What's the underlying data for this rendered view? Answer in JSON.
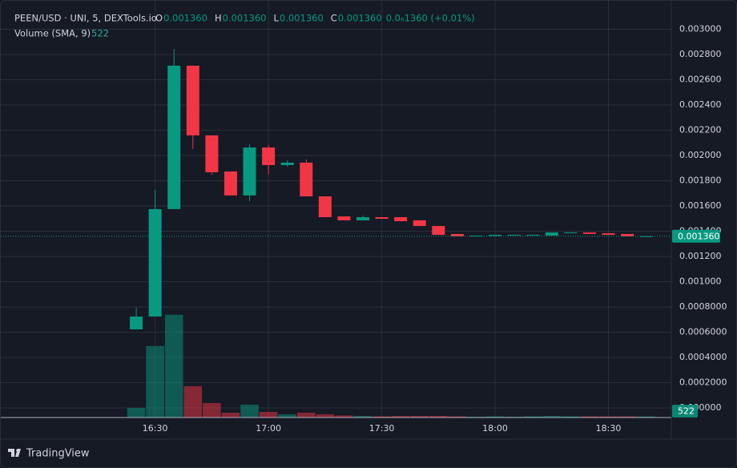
{
  "chart_data": {
    "type": "candlestick",
    "legend": {
      "symbol": "PEEN/USD · UNI, 5, DEXTools.io",
      "ohlc": [
        {
          "key": "O",
          "value": "0.001360"
        },
        {
          "key": "H",
          "value": "0.001360"
        },
        {
          "key": "L",
          "value": "0.001360"
        },
        {
          "key": "C",
          "value": "0.001360"
        }
      ],
      "change": "0.0₆1360 (+0.01%)",
      "volume_label": "Volume (SMA, 9)"
    },
    "last_price_label": "0.001360",
    "brand": "TradingView",
    "up_color": "#089981",
    "down_color": "#f23645",
    "open": [
      0.000622,
      0.000724,
      0.001575,
      0.002711,
      0.002159,
      0.001873,
      0.001683,
      0.002063,
      0.001924,
      0.001943,
      0.001676,
      0.001517,
      0.001486,
      0.001511,
      0.001511,
      0.001486,
      0.001441,
      0.001378,
      0.001359,
      0.001362,
      0.001365,
      0.001365,
      0.001365,
      0.001384,
      0.00139,
      0.001384,
      0.001378,
      0.00136
    ],
    "high": [
      0.000794,
      0.001727,
      0.002844,
      0.002711,
      0.002159,
      0.001873,
      0.002089,
      0.002083,
      0.001962,
      0.001968,
      0.001676,
      0.001517,
      0.001524,
      0.001511,
      0.001511,
      0.001486,
      0.001441,
      0.001378,
      0.001365,
      0.001371,
      0.001371,
      0.001371,
      0.00139,
      0.00139,
      0.00139,
      0.001384,
      0.001378,
      0.00136
    ],
    "low": [
      0.000622,
      0.000724,
      0.001575,
      0.002051,
      0.001848,
      0.001683,
      0.001638,
      0.001848,
      0.001911,
      0.001676,
      0.001511,
      0.001486,
      0.001486,
      0.001498,
      0.001479,
      0.001441,
      0.001371,
      0.001359,
      0.001359,
      0.001362,
      0.001365,
      0.001365,
      0.001365,
      0.001384,
      0.001378,
      0.001371,
      0.001359,
      0.00136
    ],
    "close": [
      0.000724,
      0.001575,
      0.002711,
      0.002159,
      0.001867,
      0.001683,
      0.002063,
      0.001924,
      0.001943,
      0.001676,
      0.001511,
      0.001486,
      0.001511,
      0.001498,
      0.001479,
      0.001441,
      0.001371,
      0.001359,
      0.001365,
      0.001371,
      0.001371,
      0.001371,
      0.00139,
      0.00139,
      0.001378,
      0.001371,
      0.001359,
      0.00136
    ],
    "volume": [
      4800,
      35600,
      51200,
      15600,
      7200,
      2400,
      6400,
      2800,
      1600,
      2400,
      1600,
      1000,
      800,
      600,
      800,
      800,
      800,
      600,
      400,
      600,
      400,
      600,
      800,
      600,
      600,
      600,
      600,
      522
    ],
    "volume_ylim": [
      0,
      204000
    ],
    "xlim": [
      -6.79,
      28.33
    ],
    "xticks": [
      {
        "value": 1,
        "label": "16:30"
      },
      {
        "value": 7,
        "label": "17:00"
      },
      {
        "value": 13,
        "label": "17:30"
      },
      {
        "value": 19,
        "label": "18:00"
      },
      {
        "value": 25,
        "label": "18:30"
      }
    ],
    "ylim": [
      -7.62e-05,
      0.003168
    ],
    "yticks": [
      {
        "value": 0,
        "label": "0.000000"
      },
      {
        "value": 0.0002,
        "label": "0.0002000"
      },
      {
        "value": 0.0004,
        "label": "0.0004000"
      },
      {
        "value": 0.0006,
        "label": "0.0006000"
      },
      {
        "value": 0.0008,
        "label": "0.0008000"
      },
      {
        "value": 0.001,
        "label": "0.001000"
      },
      {
        "value": 0.0012,
        "label": "0.001200"
      },
      {
        "value": 0.0014,
        "label": "0.001400"
      },
      {
        "value": 0.0016,
        "label": "0.001600"
      },
      {
        "value": 0.0018,
        "label": "0.001800"
      },
      {
        "value": 0.002,
        "label": "0.002000"
      },
      {
        "value": 0.0022,
        "label": "0.002200"
      },
      {
        "value": 0.0024,
        "label": "0.002400"
      },
      {
        "value": 0.0026,
        "label": "0.002600"
      },
      {
        "value": 0.0028,
        "label": "0.002800"
      },
      {
        "value": 0.003,
        "label": "0.003000"
      }
    ],
    "grid": true
  }
}
